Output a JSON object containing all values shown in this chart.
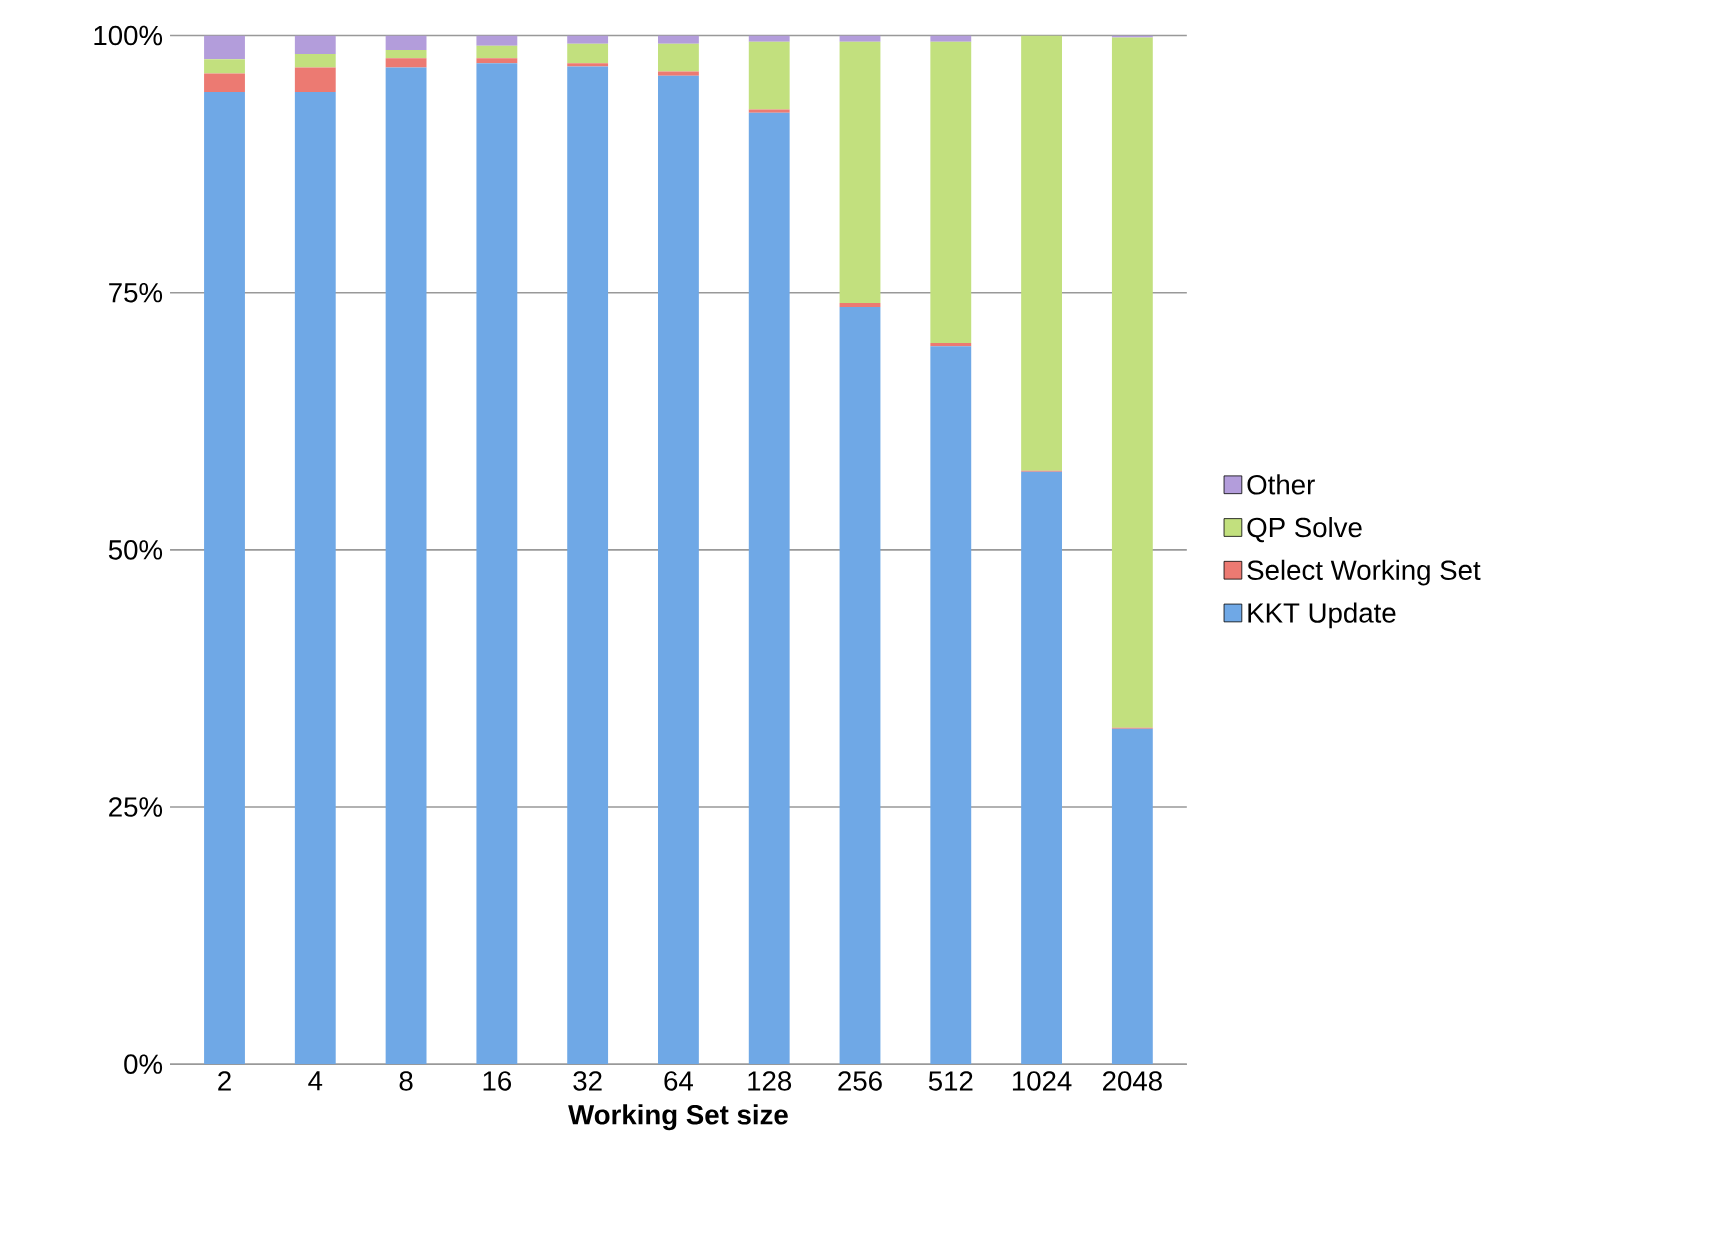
{
  "chart_data": {
    "type": "bar",
    "stacked": true,
    "xlabel": "Working Set size",
    "categories": [
      "2",
      "4",
      "8",
      "16",
      "32",
      "64",
      "128",
      "256",
      "512",
      "1024",
      "2048"
    ],
    "series": [
      {
        "name": "KKT Update",
        "color": "#6fa8e6",
        "values": [
          94.5,
          94.5,
          96.9,
          97.3,
          97.0,
          96.1,
          92.5,
          73.6,
          69.8,
          57.6,
          32.6
        ]
      },
      {
        "name": "Select Working Set",
        "color": "#ec7a72",
        "values": [
          1.8,
          2.4,
          0.9,
          0.5,
          0.3,
          0.4,
          0.3,
          0.4,
          0.3,
          0.1,
          0.1
        ]
      },
      {
        "name": "QP Solve",
        "color": "#c2e07e",
        "values": [
          1.4,
          1.3,
          0.8,
          1.2,
          1.9,
          2.7,
          6.6,
          25.4,
          29.3,
          42.3,
          67.1
        ]
      },
      {
        "name": "Other",
        "color": "#b39ddb",
        "values": [
          2.3,
          1.8,
          1.4,
          1.0,
          0.8,
          0.8,
          0.6,
          0.6,
          0.6,
          0.0,
          0.2
        ]
      }
    ],
    "ylim": [
      0,
      100
    ],
    "yticks": [
      {
        "value": 0,
        "label": "0%"
      },
      {
        "value": 25,
        "label": "25%"
      },
      {
        "value": 50,
        "label": "50%"
      },
      {
        "value": 75,
        "label": "75%"
      },
      {
        "value": 100,
        "label": "100%"
      }
    ],
    "grid": "y",
    "legend": "right"
  }
}
